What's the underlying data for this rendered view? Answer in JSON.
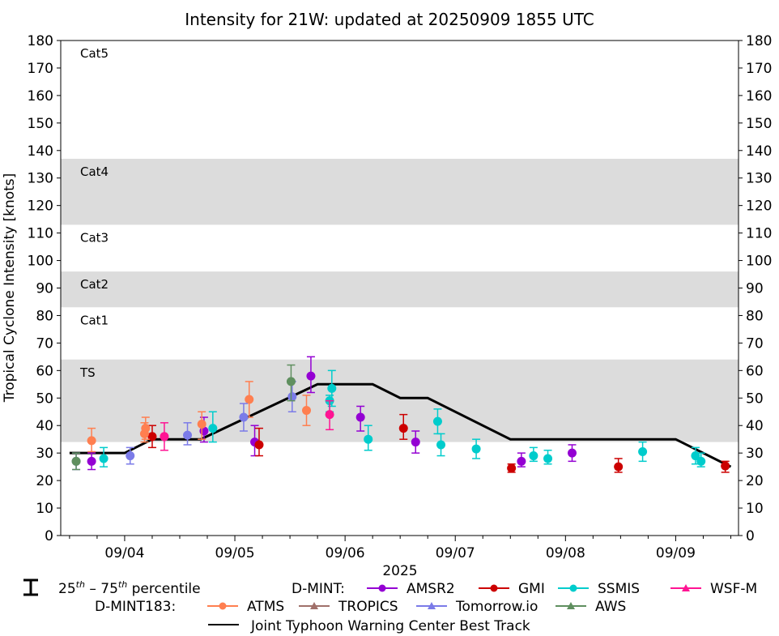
{
  "chart_data": {
    "type": "scatter",
    "title": "Intensity for 21W: updated at 20250909 1855 UTC",
    "xlabel": "2025",
    "ylabel": "Tropical Cyclone Intensity [knots]",
    "ylim": [
      0,
      180
    ],
    "xlim_day_of_month": [
      3.42,
      9.57
    ],
    "yticks": [
      0,
      10,
      20,
      30,
      40,
      50,
      60,
      70,
      80,
      90,
      100,
      110,
      120,
      130,
      140,
      150,
      160,
      170,
      180
    ],
    "xticks": [
      {
        "day": 4,
        "label": "09/04"
      },
      {
        "day": 5,
        "label": "09/05"
      },
      {
        "day": 6,
        "label": "09/06"
      },
      {
        "day": 7,
        "label": "09/07"
      },
      {
        "day": 8,
        "label": "09/08"
      },
      {
        "day": 9,
        "label": "09/09"
      }
    ],
    "minor_ticks_per_day": 4,
    "grid": false,
    "category_bands": [
      {
        "label": "TS",
        "min": 34,
        "max": 64,
        "shaded": true
      },
      {
        "label": "Cat1",
        "min": 64,
        "max": 83,
        "shaded": false
      },
      {
        "label": "Cat2",
        "min": 83,
        "max": 96,
        "shaded": true
      },
      {
        "label": "Cat3",
        "min": 96,
        "max": 113,
        "shaded": false
      },
      {
        "label": "Cat4",
        "min": 113,
        "max": 137,
        "shaded": true
      },
      {
        "label": "Cat5",
        "min": 137,
        "max": 180,
        "shaded": false
      }
    ],
    "band_color": "#dcdcdc",
    "best_track": {
      "name": "Joint Typhoon Warning Center Best Track",
      "color": "#000000",
      "points": [
        [
          3.5,
          30
        ],
        [
          4.0,
          30
        ],
        [
          4.25,
          35
        ],
        [
          4.69,
          35
        ],
        [
          5.75,
          55
        ],
        [
          6.25,
          55
        ],
        [
          6.5,
          50
        ],
        [
          6.75,
          50
        ],
        [
          7.5,
          35
        ],
        [
          9.0,
          35
        ],
        [
          9.5,
          25
        ]
      ]
    },
    "series": [
      {
        "name": "AMSR2",
        "group": "D-MINT",
        "color": "#9400d3",
        "marker": "circle",
        "points": [
          {
            "day": 3.7,
            "value": 27,
            "p25": 24,
            "p75": 30
          },
          {
            "day": 4.72,
            "value": 38,
            "p25": 34,
            "p75": 43
          },
          {
            "day": 5.18,
            "value": 34,
            "p25": 29,
            "p75": 40
          },
          {
            "day": 5.69,
            "value": 58,
            "p25": 52,
            "p75": 65
          },
          {
            "day": 6.14,
            "value": 43,
            "p25": 38,
            "p75": 47
          },
          {
            "day": 6.64,
            "value": 34,
            "p25": 30,
            "p75": 38
          },
          {
            "day": 7.6,
            "value": 27,
            "p25": 25,
            "p75": 30
          },
          {
            "day": 8.06,
            "value": 30,
            "p25": 27,
            "p75": 33
          }
        ]
      },
      {
        "name": "GMI",
        "group": "D-MINT",
        "color": "#cc0000",
        "marker": "circle",
        "points": [
          {
            "day": 4.25,
            "value": 36,
            "p25": 32,
            "p75": 40
          },
          {
            "day": 5.22,
            "value": 33,
            "p25": 29,
            "p75": 39
          },
          {
            "day": 6.53,
            "value": 39,
            "p25": 35,
            "p75": 44
          },
          {
            "day": 7.51,
            "value": 24.5,
            "p25": 23,
            "p75": 26
          },
          {
            "day": 8.48,
            "value": 25,
            "p25": 23,
            "p75": 28
          },
          {
            "day": 9.45,
            "value": 25.3,
            "p25": 23,
            "p75": 27
          }
        ]
      },
      {
        "name": "SSMIS",
        "group": "D-MINT",
        "color": "#00cccc",
        "marker": "circle",
        "points": [
          {
            "day": 3.81,
            "value": 28,
            "p25": 25,
            "p75": 32
          },
          {
            "day": 4.8,
            "value": 39,
            "p25": 34,
            "p75": 45
          },
          {
            "day": 5.86,
            "value": 49,
            "p25": 45,
            "p75": 51
          },
          {
            "day": 5.88,
            "value": 53.5,
            "p25": 47,
            "p75": 60
          },
          {
            "day": 6.21,
            "value": 35,
            "p25": 31,
            "p75": 40
          },
          {
            "day": 6.84,
            "value": 41.5,
            "p25": 37,
            "p75": 46
          },
          {
            "day": 6.87,
            "value": 33,
            "p25": 29,
            "p75": 37
          },
          {
            "day": 7.19,
            "value": 31.5,
            "p25": 28,
            "p75": 35
          },
          {
            "day": 7.71,
            "value": 29,
            "p25": 27,
            "p75": 32
          },
          {
            "day": 7.84,
            "value": 28,
            "p25": 26,
            "p75": 31
          },
          {
            "day": 8.7,
            "value": 30.5,
            "p25": 27,
            "p75": 34
          },
          {
            "day": 9.18,
            "value": 29,
            "p25": 26,
            "p75": 32
          },
          {
            "day": 9.23,
            "value": 27,
            "p25": 25,
            "p75": 30
          }
        ]
      },
      {
        "name": "WSF-M",
        "group": "D-MINT",
        "color": "#ff1493",
        "marker": "circle",
        "points": [
          {
            "day": 4.36,
            "value": 36,
            "p25": 31,
            "p75": 41
          },
          {
            "day": 5.86,
            "value": 44,
            "p25": 38.5,
            "p75": 49
          }
        ]
      },
      {
        "name": "ATMS",
        "group": "D-MINT183",
        "color": "#ff7f50",
        "marker": "circle",
        "points": [
          {
            "day": 3.7,
            "value": 34.5,
            "p25": 30.5,
            "p75": 39
          },
          {
            "day": 4.18,
            "value": 37,
            "p25": 34,
            "p75": 41
          },
          {
            "day": 4.19,
            "value": 39,
            "p25": 35,
            "p75": 43
          },
          {
            "day": 4.7,
            "value": 40.5,
            "p25": 35,
            "p75": 45
          },
          {
            "day": 5.13,
            "value": 49.5,
            "p25": 43,
            "p75": 56
          },
          {
            "day": 5.65,
            "value": 45.5,
            "p25": 40,
            "p75": 51
          }
        ]
      },
      {
        "name": "TROPICS",
        "group": "D-MINT183",
        "color": "#a0706a",
        "marker": "triangle",
        "points": []
      },
      {
        "name": "Tomorrow.io",
        "group": "D-MINT183",
        "color": "#7b7be8",
        "marker": "circle",
        "points": [
          {
            "day": 3.56,
            "value": 27,
            "p25": 24,
            "p75": 30
          },
          {
            "day": 4.05,
            "value": 29,
            "p25": 26,
            "p75": 32
          },
          {
            "day": 4.57,
            "value": 36.5,
            "p25": 33,
            "p75": 41
          },
          {
            "day": 5.08,
            "value": 43,
            "p25": 38,
            "p75": 48
          },
          {
            "day": 5.52,
            "value": 50.5,
            "p25": 45,
            "p75": 56
          }
        ]
      },
      {
        "name": "AWS",
        "group": "D-MINT183",
        "color": "#5f8f5f",
        "marker": "circle",
        "points": [
          {
            "day": 3.56,
            "value": 27,
            "p25": 24,
            "p75": 30
          },
          {
            "day": 5.51,
            "value": 56,
            "p25": 49,
            "p75": 62
          }
        ]
      }
    ],
    "legend": {
      "placement": "bottom",
      "percentile_label_base_1": "25",
      "percentile_sup_1": "th",
      "percentile_dash": " – ",
      "percentile_label_base_2": "75",
      "percentile_sup_2": "th",
      "percentile_tail": " percentile",
      "group1_label": "D-MINT:",
      "group2_label": "D-MINT183:",
      "group1_items": [
        "AMSR2",
        "GMI",
        "SSMIS",
        "WSF-M"
      ],
      "group2_items": [
        "ATMS",
        "TROPICS",
        "Tomorrow.io",
        "AWS"
      ],
      "best_track_label": "Joint Typhoon Warning Center Best Track"
    }
  }
}
